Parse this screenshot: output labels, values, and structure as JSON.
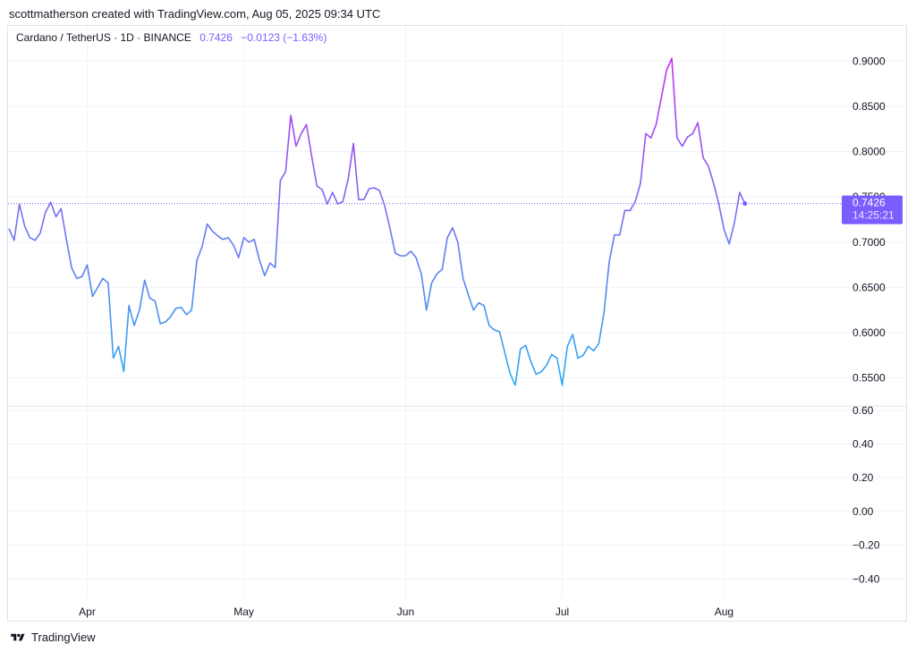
{
  "header": {
    "caption": "scottmatherson created with TradingView.com, Aug 05, 2025 09:34 UTC"
  },
  "symbol": {
    "name": "Cardano / TetherUS · 1D · BINANCE",
    "last_price": "0.7426",
    "change": "−0.0123 (−1.63%)"
  },
  "price_tag": {
    "value": "0.7426",
    "countdown": "14:25:21"
  },
  "footer": {
    "brand": "TradingView",
    "logo_icon": "tradingview-logo-icon"
  },
  "colors": {
    "line_low": "#2ea8f2",
    "line_mid": "#7b6cf0",
    "line_high": "#c02ff5",
    "tag": "#7b5cff",
    "grid": "#f0f3fa",
    "axis_text": "#131722"
  },
  "chart_data": [
    {
      "type": "line",
      "title": "",
      "grid": true,
      "ylim": [
        0.52,
        0.923
      ],
      "y_ticks": [
        "0.5500",
        "0.6000",
        "0.6500",
        "0.7000",
        "0.7500",
        "0.8000",
        "0.8500",
        "0.9000"
      ],
      "x_ticks": [
        "Apr",
        "May",
        "Jun",
        "Jul",
        "Aug"
      ],
      "x_tick_dates": [
        "2025-04-01",
        "2025-05-01",
        "2025-06-01",
        "2025-07-01",
        "2025-08-01"
      ],
      "current_value": 0.7426,
      "series": [
        {
          "points": [
            [
              "2025-03-17",
              0.715
            ],
            [
              "2025-03-18",
              0.702
            ],
            [
              "2025-03-19",
              0.742
            ],
            [
              "2025-03-20",
              0.718
            ],
            [
              "2025-03-21",
              0.705
            ],
            [
              "2025-03-22",
              0.702
            ],
            [
              "2025-03-23",
              0.71
            ],
            [
              "2025-03-24",
              0.733
            ],
            [
              "2025-03-25",
              0.744
            ],
            [
              "2025-03-26",
              0.728
            ],
            [
              "2025-03-27",
              0.737
            ],
            [
              "2025-03-28",
              0.703
            ],
            [
              "2025-03-29",
              0.672
            ],
            [
              "2025-03-30",
              0.66
            ],
            [
              "2025-03-31",
              0.662
            ],
            [
              "2025-04-01",
              0.675
            ],
            [
              "2025-04-02",
              0.64
            ],
            [
              "2025-04-03",
              0.65
            ],
            [
              "2025-04-04",
              0.66
            ],
            [
              "2025-04-05",
              0.655
            ],
            [
              "2025-04-06",
              0.572
            ],
            [
              "2025-04-07",
              0.585
            ],
            [
              "2025-04-08",
              0.557
            ],
            [
              "2025-04-09",
              0.63
            ],
            [
              "2025-04-10",
              0.608
            ],
            [
              "2025-04-11",
              0.625
            ],
            [
              "2025-04-12",
              0.658
            ],
            [
              "2025-04-13",
              0.638
            ],
            [
              "2025-04-14",
              0.635
            ],
            [
              "2025-04-15",
              0.61
            ],
            [
              "2025-04-16",
              0.612
            ],
            [
              "2025-04-17",
              0.618
            ],
            [
              "2025-04-18",
              0.627
            ],
            [
              "2025-04-19",
              0.628
            ],
            [
              "2025-04-20",
              0.62
            ],
            [
              "2025-04-21",
              0.625
            ],
            [
              "2025-04-22",
              0.68
            ],
            [
              "2025-04-23",
              0.695
            ],
            [
              "2025-04-24",
              0.72
            ],
            [
              "2025-04-25",
              0.712
            ],
            [
              "2025-04-26",
              0.707
            ],
            [
              "2025-04-27",
              0.703
            ],
            [
              "2025-04-28",
              0.705
            ],
            [
              "2025-04-29",
              0.697
            ],
            [
              "2025-04-30",
              0.683
            ],
            [
              "2025-05-01",
              0.705
            ],
            [
              "2025-05-02",
              0.7
            ],
            [
              "2025-05-03",
              0.703
            ],
            [
              "2025-05-04",
              0.68
            ],
            [
              "2025-05-05",
              0.663
            ],
            [
              "2025-05-06",
              0.677
            ],
            [
              "2025-05-07",
              0.672
            ],
            [
              "2025-05-08",
              0.768
            ],
            [
              "2025-05-09",
              0.778
            ],
            [
              "2025-05-10",
              0.84
            ],
            [
              "2025-05-11",
              0.806
            ],
            [
              "2025-05-12",
              0.82
            ],
            [
              "2025-05-13",
              0.83
            ],
            [
              "2025-05-14",
              0.795
            ],
            [
              "2025-05-15",
              0.762
            ],
            [
              "2025-05-16",
              0.758
            ],
            [
              "2025-05-17",
              0.742
            ],
            [
              "2025-05-18",
              0.755
            ],
            [
              "2025-05-19",
              0.742
            ],
            [
              "2025-05-20",
              0.745
            ],
            [
              "2025-05-21",
              0.77
            ],
            [
              "2025-05-22",
              0.809
            ],
            [
              "2025-05-23",
              0.747
            ],
            [
              "2025-05-24",
              0.747
            ],
            [
              "2025-05-25",
              0.759
            ],
            [
              "2025-05-26",
              0.76
            ],
            [
              "2025-05-27",
              0.757
            ],
            [
              "2025-05-28",
              0.74
            ],
            [
              "2025-05-29",
              0.715
            ],
            [
              "2025-05-30",
              0.688
            ],
            [
              "2025-05-31",
              0.685
            ],
            [
              "2025-06-01",
              0.685
            ],
            [
              "2025-06-02",
              0.69
            ],
            [
              "2025-06-03",
              0.683
            ],
            [
              "2025-06-04",
              0.665
            ],
            [
              "2025-06-05",
              0.625
            ],
            [
              "2025-06-06",
              0.655
            ],
            [
              "2025-06-07",
              0.665
            ],
            [
              "2025-06-08",
              0.67
            ],
            [
              "2025-06-09",
              0.705
            ],
            [
              "2025-06-10",
              0.716
            ],
            [
              "2025-06-11",
              0.7
            ],
            [
              "2025-06-12",
              0.66
            ],
            [
              "2025-06-13",
              0.642
            ],
            [
              "2025-06-14",
              0.625
            ],
            [
              "2025-06-15",
              0.633
            ],
            [
              "2025-06-16",
              0.63
            ],
            [
              "2025-06-17",
              0.608
            ],
            [
              "2025-06-18",
              0.603
            ],
            [
              "2025-06-19",
              0.601
            ],
            [
              "2025-06-20",
              0.578
            ],
            [
              "2025-06-21",
              0.555
            ],
            [
              "2025-06-22",
              0.542
            ],
            [
              "2025-06-23",
              0.582
            ],
            [
              "2025-06-24",
              0.586
            ],
            [
              "2025-06-25",
              0.568
            ],
            [
              "2025-06-26",
              0.554
            ],
            [
              "2025-06-27",
              0.557
            ],
            [
              "2025-06-28",
              0.564
            ],
            [
              "2025-06-29",
              0.576
            ],
            [
              "2025-06-30",
              0.572
            ],
            [
              "2025-07-01",
              0.542
            ],
            [
              "2025-07-02",
              0.585
            ],
            [
              "2025-07-03",
              0.598
            ],
            [
              "2025-07-04",
              0.572
            ],
            [
              "2025-07-05",
              0.575
            ],
            [
              "2025-07-06",
              0.585
            ],
            [
              "2025-07-07",
              0.58
            ],
            [
              "2025-07-08",
              0.588
            ],
            [
              "2025-07-09",
              0.622
            ],
            [
              "2025-07-10",
              0.678
            ],
            [
              "2025-07-11",
              0.708
            ],
            [
              "2025-07-12",
              0.708
            ],
            [
              "2025-07-13",
              0.735
            ],
            [
              "2025-07-14",
              0.735
            ],
            [
              "2025-07-15",
              0.745
            ],
            [
              "2025-07-16",
              0.765
            ],
            [
              "2025-07-17",
              0.82
            ],
            [
              "2025-07-18",
              0.815
            ],
            [
              "2025-07-19",
              0.83
            ],
            [
              "2025-07-20",
              0.86
            ],
            [
              "2025-07-21",
              0.89
            ],
            [
              "2025-07-22",
              0.903
            ],
            [
              "2025-07-23",
              0.815
            ],
            [
              "2025-07-24",
              0.806
            ],
            [
              "2025-07-25",
              0.816
            ],
            [
              "2025-07-26",
              0.82
            ],
            [
              "2025-07-27",
              0.832
            ],
            [
              "2025-07-28",
              0.793
            ],
            [
              "2025-07-29",
              0.784
            ],
            [
              "2025-07-30",
              0.765
            ],
            [
              "2025-07-31",
              0.742
            ],
            [
              "2025-08-01",
              0.714
            ],
            [
              "2025-08-02",
              0.698
            ],
            [
              "2025-08-03",
              0.722
            ],
            [
              "2025-08-04",
              0.755
            ],
            [
              "2025-08-05",
              0.7426
            ]
          ]
        }
      ]
    },
    {
      "type": "line",
      "title": "",
      "grid": true,
      "ylim": [
        -0.51,
        0.62
      ],
      "y_ticks": [
        "−0.40",
        "−0.20",
        "0.00",
        "0.20",
        "0.40",
        "0.60"
      ],
      "series": []
    }
  ]
}
